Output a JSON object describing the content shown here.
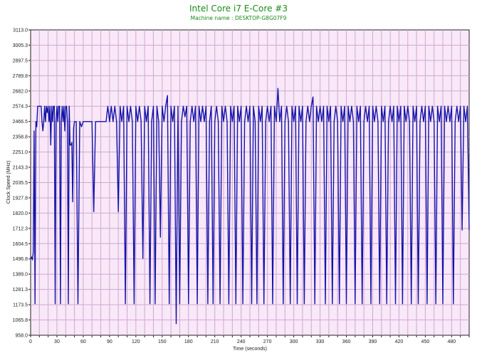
{
  "chart_data": {
    "type": "line",
    "title": "Intel Core i7 E-Core #3",
    "subtitle": "Machine name : DESKTOP-G8G07F9",
    "xlabel": "Time (seconds)",
    "ylabel": "Clock Speed (MHz)",
    "xlim": [
      0,
      500
    ],
    "ylim": [
      958.0,
      3113.0
    ],
    "x_ticks": [
      "0",
      "30",
      "60",
      "90",
      "120",
      "150",
      "180",
      "210",
      "240",
      "270",
      "300",
      "330",
      "360",
      "390",
      "420",
      "450",
      "480"
    ],
    "y_ticks": [
      "958.0",
      "1065.8",
      "1173.5",
      "1281.3",
      "1389.0",
      "1496.8",
      "1604.5",
      "1712.3",
      "1820.0",
      "1927.8",
      "2035.5",
      "2143.3",
      "2251.0",
      "2358.8",
      "2466.5",
      "2574.3",
      "2682.0",
      "2789.8",
      "2897.5",
      "3005.3",
      "3113.0"
    ],
    "grid": true,
    "series": [
      {
        "color": "#1414a8",
        "x": [
          0,
          1,
          2,
          3,
          4,
          5,
          6,
          7,
          8,
          9,
          10,
          11,
          12,
          13,
          14,
          15,
          16,
          17,
          18,
          19,
          20,
          21,
          22,
          23,
          24,
          25,
          26,
          27,
          28,
          29,
          30,
          31,
          32,
          33,
          34,
          35,
          36,
          37,
          38,
          39,
          40,
          41,
          42,
          43,
          44,
          45,
          46,
          47,
          48,
          49,
          50,
          52,
          54,
          56,
          58,
          60,
          62,
          64,
          66,
          68,
          70,
          72,
          74,
          76,
          78,
          80,
          82,
          84,
          86,
          88,
          90,
          92,
          94,
          96,
          98,
          100,
          102,
          104,
          106,
          108,
          110,
          112,
          114,
          116,
          118,
          120,
          122,
          124,
          126,
          128,
          130,
          132,
          134,
          136,
          138,
          140,
          142,
          144,
          146,
          148,
          150,
          152,
          154,
          156,
          158,
          160,
          162,
          164,
          166,
          168,
          170,
          172,
          174,
          176,
          178,
          180,
          182,
          184,
          186,
          188,
          190,
          192,
          194,
          196,
          198,
          200,
          202,
          204,
          206,
          208,
          210,
          212,
          214,
          216,
          218,
          220,
          222,
          224,
          226,
          228,
          230,
          232,
          234,
          236,
          238,
          240,
          242,
          244,
          246,
          248,
          250,
          252,
          254,
          256,
          258,
          260,
          262,
          264,
          266,
          268,
          270,
          272,
          274,
          276,
          278,
          280,
          282,
          284,
          286,
          288,
          290,
          292,
          294,
          296,
          298,
          300,
          302,
          304,
          306,
          308,
          310,
          312,
          314,
          316,
          318,
          320,
          322,
          324,
          326,
          328,
          330,
          332,
          334,
          336,
          338,
          340,
          342,
          344,
          346,
          348,
          350,
          352,
          354,
          356,
          358,
          360,
          362,
          364,
          366,
          368,
          370,
          372,
          374,
          376,
          378,
          380,
          382,
          384,
          386,
          388,
          390,
          392,
          394,
          396,
          398,
          400,
          402,
          404,
          406,
          408,
          410,
          412,
          414,
          416,
          418,
          420,
          422,
          424,
          426,
          428,
          430,
          432,
          434,
          436,
          438,
          440,
          442,
          444,
          446,
          448,
          450,
          452,
          454,
          456,
          458,
          460,
          462,
          464,
          466,
          468,
          470,
          472,
          474,
          476,
          478,
          480,
          482,
          484,
          486,
          488,
          490,
          492,
          494,
          496,
          498,
          500
        ],
        "y": [
          1497,
          1510,
          1490,
          1540,
          2400,
          1180,
          2466,
          2430,
          2574,
          2574,
          2574,
          2574,
          2574,
          2466,
          2400,
          2466,
          2574,
          2466,
          2574,
          2530,
          2574,
          2466,
          2574,
          2300,
          2574,
          2466,
          2574,
          2574,
          1180,
          2466,
          2574,
          2466,
          2574,
          2574,
          1180,
          2466,
          2574,
          2466,
          2574,
          2400,
          2574,
          2574,
          2466,
          1180,
          2574,
          2300,
          2300,
          2320,
          1900,
          2420,
          2466,
          2466,
          1180,
          2466,
          2430,
          2466,
          2466,
          2466,
          2466,
          2466,
          2466,
          1830,
          2466,
          2466,
          2466,
          2466,
          2466,
          2466,
          2466,
          2574,
          2466,
          2574,
          2466,
          2574,
          2466,
          1830,
          2574,
          2466,
          2574,
          1180,
          2574,
          2466,
          2574,
          2466,
          1180,
          2574,
          2466,
          2574,
          2466,
          1500,
          2574,
          2466,
          2574,
          1180,
          2466,
          2574,
          1180,
          2574,
          2466,
          1650,
          2574,
          2466,
          2574,
          2650,
          1180,
          2574,
          2466,
          2574,
          1040,
          2574,
          1180,
          2466,
          2574,
          2500,
          2574,
          1180,
          2466,
          2574,
          2466,
          2574,
          1180,
          2574,
          2466,
          2574,
          2466,
          2574,
          1180,
          2466,
          2574,
          1180,
          2466,
          2574,
          2466,
          1180,
          2574,
          2466,
          2574,
          2466,
          1180,
          2574,
          2466,
          2574,
          1180,
          2574,
          2466,
          2574,
          1180,
          2466,
          2574,
          2466,
          2574,
          1180,
          2574,
          2466,
          1180,
          2574,
          2466,
          2574,
          1180,
          2466,
          2574,
          2466,
          2574,
          1180,
          2574,
          2466,
          2700,
          2466,
          2574,
          1180,
          2466,
          2574,
          2466,
          1180,
          2574,
          2466,
          2574,
          1180,
          2574,
          2466,
          2574,
          1180,
          2466,
          2574,
          2466,
          2574,
          2640,
          1180,
          2574,
          2466,
          2574,
          2466,
          2574,
          1180,
          2574,
          2466,
          2574,
          1180,
          2466,
          2574,
          2466,
          1180,
          2574,
          2466,
          2574,
          1180,
          2574,
          2466,
          2574,
          2466,
          1180,
          2574,
          2466,
          2574,
          1180,
          2466,
          2574,
          2466,
          2574,
          1180,
          2574,
          2466,
          2574,
          2466,
          1180,
          2574,
          2466,
          2574,
          1180,
          2466,
          2574,
          2466,
          2574,
          1180,
          2574,
          2466,
          2574,
          1180,
          2574,
          2466,
          2574,
          2466,
          1180,
          2574,
          2466,
          2574,
          1180,
          2466,
          2574,
          2466,
          2574,
          1180,
          2574,
          2466,
          2574,
          2466,
          1180,
          2574,
          2466,
          2574,
          1180,
          2574,
          2466,
          2574,
          2466,
          2574,
          1180,
          2466,
          2574,
          2466,
          2574,
          1700,
          2574,
          2466,
          2574,
          1700
        ]
      }
    ]
  }
}
